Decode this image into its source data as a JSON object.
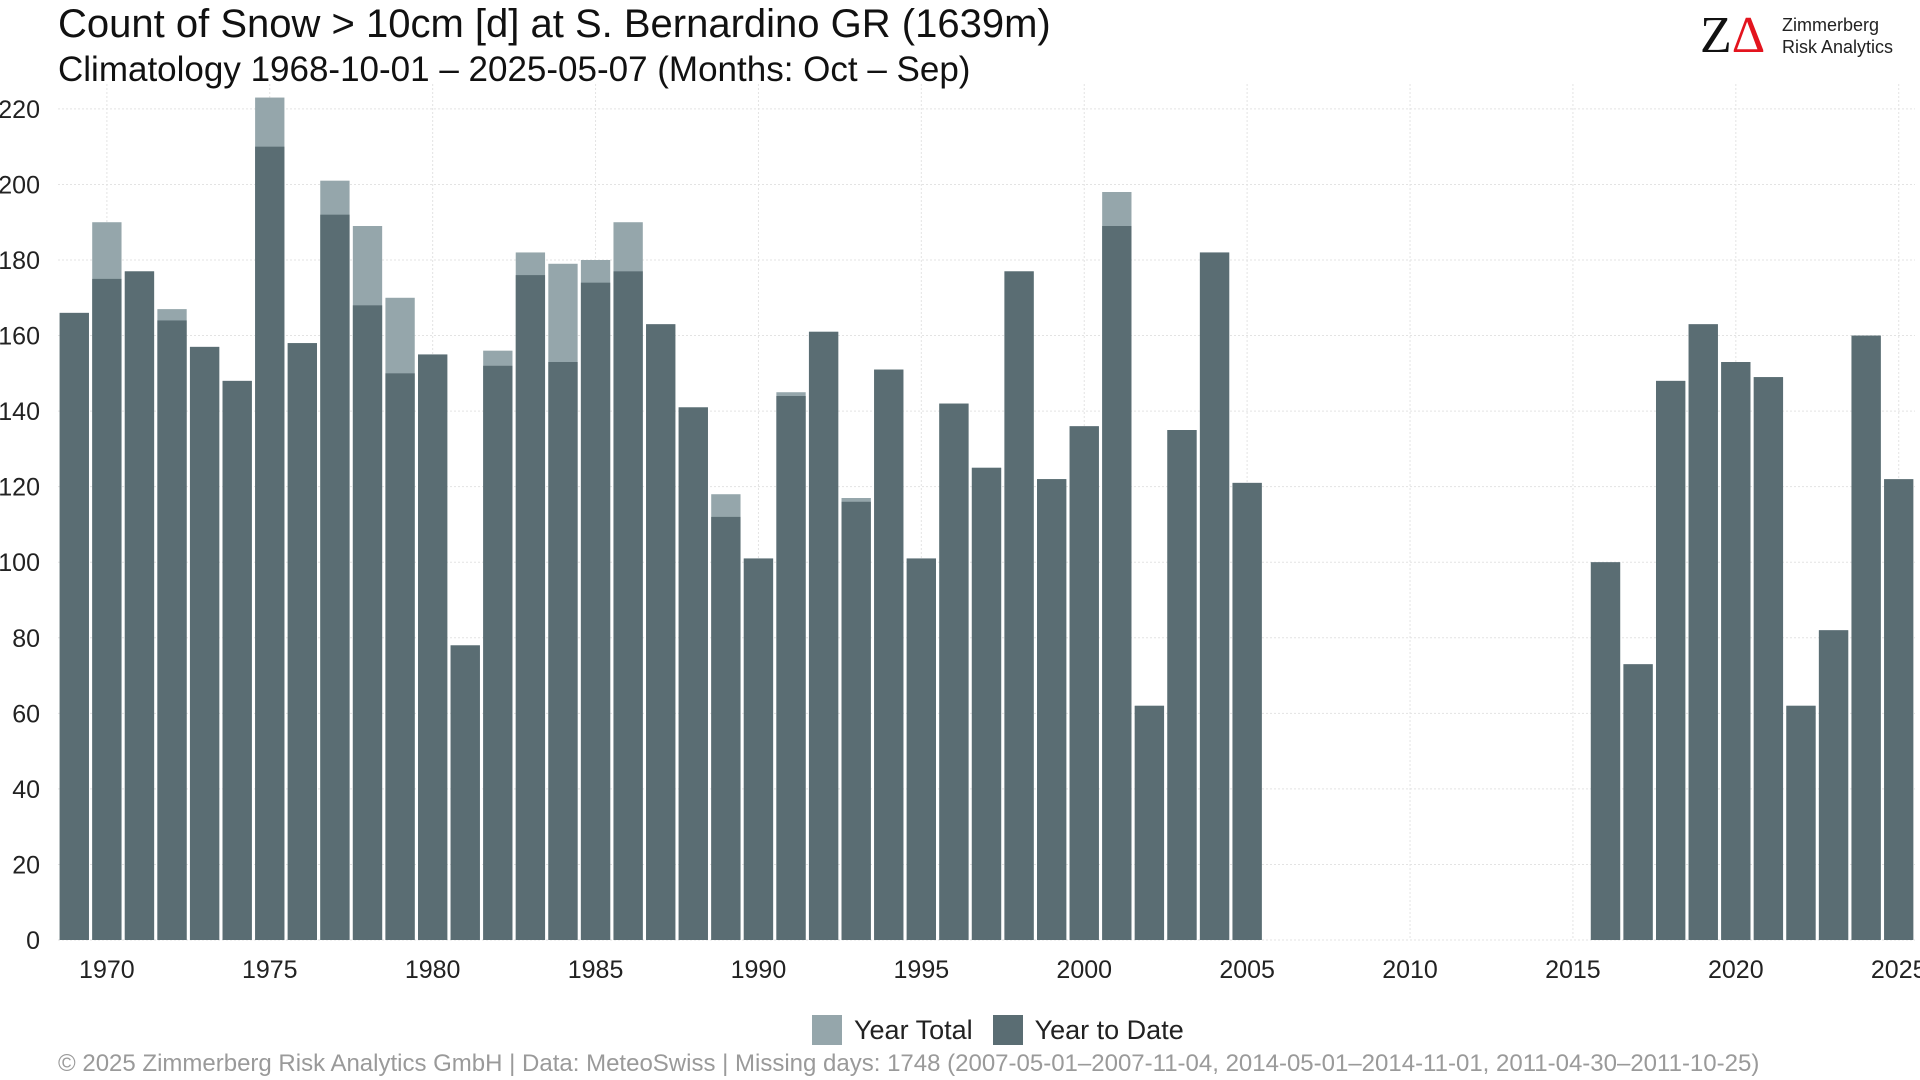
{
  "title": "Count of Snow > 10cm [d] at S. Bernardino  GR (1639m)",
  "subtitle": "Climatology 1968-10-01 – 2025-05-07 (Months: Oct – Sep)",
  "logo": {
    "line1": "Zimmerberg",
    "line2": "Risk Analytics",
    "mark": "ZΔ",
    "mark_colors": [
      "#111111",
      "#e3141e"
    ]
  },
  "caption": "©  2025 Zimmerberg Risk Analytics GmbH | Data: MeteoSwiss | Missing days: 1748 (2007-05-01–2007-11-04, 2014-05-01–2014-11-01, 2011-04-30–2011-10-25)",
  "legend": [
    {
      "label": "Year Total",
      "color": "#95a6ab"
    },
    {
      "label": "Year to Date",
      "color": "#5a6d73"
    }
  ],
  "chart_data": {
    "type": "bar",
    "grid": true,
    "legend_position": "bottom",
    "xlim": [
      1968.5,
      2025.5
    ],
    "ylim": [
      0,
      225
    ],
    "x_ticks": [
      1970,
      1975,
      1980,
      1985,
      1990,
      1995,
      2000,
      2005,
      2010,
      2015,
      2020,
      2025
    ],
    "y_ticks": [
      0,
      20,
      40,
      60,
      80,
      100,
      120,
      140,
      160,
      180,
      200,
      220
    ],
    "series": [
      {
        "name": "Year Total",
        "color": "#95a6ab",
        "x": [
          1969,
          1970,
          1971,
          1972,
          1973,
          1974,
          1975,
          1976,
          1977,
          1978,
          1979,
          1980,
          1981,
          1982,
          1983,
          1984,
          1985,
          1986,
          1987,
          1988,
          1989,
          1990,
          1991,
          1992,
          1993,
          1994,
          1995,
          1996,
          1997,
          1998,
          1999,
          2000,
          2001,
          2002,
          2003,
          2004,
          2005,
          2016,
          2017,
          2018,
          2019,
          2020,
          2021,
          2022,
          2023,
          2024
        ],
        "values": [
          166,
          190,
          177,
          167,
          157,
          148,
          223,
          158,
          201,
          189,
          170,
          155,
          78,
          156,
          182,
          179,
          180,
          190,
          163,
          141,
          118,
          101,
          145,
          161,
          117,
          151,
          101,
          142,
          125,
          177,
          122,
          136,
          198,
          62,
          135,
          182,
          121,
          100,
          73,
          148,
          163,
          153,
          149,
          62,
          82,
          160
        ]
      },
      {
        "name": "Year to Date",
        "color": "#5a6d73",
        "x": [
          1969,
          1970,
          1971,
          1972,
          1973,
          1974,
          1975,
          1976,
          1977,
          1978,
          1979,
          1980,
          1981,
          1982,
          1983,
          1984,
          1985,
          1986,
          1987,
          1988,
          1989,
          1990,
          1991,
          1992,
          1993,
          1994,
          1995,
          1996,
          1997,
          1998,
          1999,
          2000,
          2001,
          2002,
          2003,
          2004,
          2005,
          2016,
          2017,
          2018,
          2019,
          2020,
          2021,
          2022,
          2023,
          2024,
          2025
        ],
        "values": [
          166,
          175,
          177,
          164,
          157,
          148,
          210,
          158,
          192,
          168,
          150,
          155,
          78,
          152,
          176,
          153,
          174,
          177,
          163,
          141,
          112,
          101,
          144,
          161,
          116,
          151,
          101,
          142,
          125,
          177,
          122,
          136,
          189,
          62,
          135,
          182,
          121,
          100,
          73,
          148,
          163,
          153,
          149,
          62,
          82,
          160,
          122
        ]
      }
    ]
  }
}
